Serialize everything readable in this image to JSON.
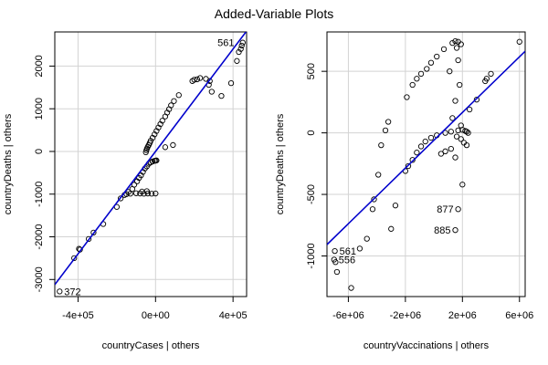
{
  "figure": {
    "title": "Added-Variable Plots"
  },
  "chart_data": [
    {
      "type": "scatter",
      "xlabel": "countryCases | others",
      "ylabel": "countryDeaths | others",
      "xlim": [
        -520000,
        470000
      ],
      "ylim": [
        -3400,
        2800
      ],
      "xticks": [
        -400000,
        0,
        400000
      ],
      "xtick_labels": [
        "-4e+05",
        "0e+00",
        "4e+05"
      ],
      "yticks": [
        -3000,
        -2000,
        -1000,
        0,
        1000,
        2000
      ],
      "ytick_labels": [
        "-3000",
        "-2000",
        "-1000",
        "0",
        "1000",
        "2000"
      ],
      "grid": true,
      "fit_line": {
        "slope": 0.006,
        "intercept": 0,
        "color": "#0000cc"
      },
      "labels": [
        {
          "text": "561",
          "x": 430000,
          "y": 2550
        },
        {
          "text": "372",
          "x": -495000,
          "y": -3280
        }
      ],
      "points": [
        [
          -495000,
          -3280
        ],
        [
          -420000,
          -2500
        ],
        [
          -395000,
          -2280
        ],
        [
          -390000,
          -2300
        ],
        [
          -345000,
          -2050
        ],
        [
          -320000,
          -1900
        ],
        [
          -270000,
          -1700
        ],
        [
          -200000,
          -1300
        ],
        [
          -180000,
          -1100
        ],
        [
          -160000,
          -1020
        ],
        [
          -140000,
          -950
        ],
        [
          -120000,
          -880
        ],
        [
          -110000,
          -780
        ],
        [
          -95000,
          -700
        ],
        [
          -85000,
          -620
        ],
        [
          -75000,
          -560
        ],
        [
          -65000,
          -480
        ],
        [
          -55000,
          -400
        ],
        [
          -45000,
          -350
        ],
        [
          -35000,
          -290
        ],
        [
          -25000,
          -255
        ],
        [
          -15000,
          -235
        ],
        [
          -5000,
          -220
        ],
        [
          0,
          -215
        ],
        [
          5000,
          -210
        ],
        [
          -150000,
          -1000
        ],
        [
          -130000,
          -990
        ],
        [
          -100000,
          -980
        ],
        [
          -80000,
          -985
        ],
        [
          -60000,
          -990
        ],
        [
          -40000,
          -985
        ],
        [
          -20000,
          -990
        ],
        [
          0,
          -985
        ],
        [
          -70000,
          -940
        ],
        [
          -45000,
          -930
        ],
        [
          -50000,
          -20
        ],
        [
          -47000,
          30
        ],
        [
          -44000,
          70
        ],
        [
          -40000,
          110
        ],
        [
          -35000,
          150
        ],
        [
          -30000,
          200
        ],
        [
          -25000,
          250
        ],
        [
          -15000,
          320
        ],
        [
          -5000,
          400
        ],
        [
          5000,
          480
        ],
        [
          15000,
          560
        ],
        [
          25000,
          640
        ],
        [
          35000,
          720
        ],
        [
          50000,
          820
        ],
        [
          60000,
          910
        ],
        [
          70000,
          990
        ],
        [
          80000,
          1080
        ],
        [
          95000,
          1180
        ],
        [
          120000,
          1320
        ],
        [
          190000,
          1650
        ],
        [
          200000,
          1680
        ],
        [
          215000,
          1690
        ],
        [
          230000,
          1720
        ],
        [
          260000,
          1700
        ],
        [
          280000,
          1650
        ],
        [
          275000,
          1560
        ],
        [
          290000,
          1400
        ],
        [
          340000,
          1300
        ],
        [
          390000,
          1600
        ],
        [
          420000,
          2120
        ],
        [
          430000,
          2330
        ],
        [
          440000,
          2400
        ],
        [
          445000,
          2480
        ],
        [
          450000,
          2550
        ],
        [
          50000,
          100
        ],
        [
          90000,
          150
        ]
      ]
    },
    {
      "type": "scatter",
      "xlabel": "countryVaccinations | others",
      "ylabel": "countryDeaths | others",
      "xlim": [
        -7500000,
        6400000
      ],
      "ylim": [
        -1330,
        820
      ],
      "xticks": [
        -6000000,
        -2000000,
        2000000,
        6000000
      ],
      "xtick_labels": [
        "-6e+06",
        "-2e+06",
        "2e+06",
        "6e+06"
      ],
      "yticks": [
        -1000,
        -500,
        0,
        500
      ],
      "ytick_labels": [
        "-1000",
        "-500",
        "0",
        "500"
      ],
      "grid": true,
      "fit_line": {
        "slope": 0.000113,
        "intercept": -60,
        "color": "#0000cc"
      },
      "labels": [
        {
          "text": "561",
          "x": -6950000,
          "y": -960
        },
        {
          "text": "556",
          "x": -7000000,
          "y": -1030
        },
        {
          "text": "877",
          "x": 1700000,
          "y": -620
        },
        {
          "text": "885",
          "x": 1500000,
          "y": -790
        }
      ],
      "points": [
        [
          -6950000,
          -960
        ],
        [
          -7000000,
          -1030
        ],
        [
          -6900000,
          -1050
        ],
        [
          -6800000,
          -1130
        ],
        [
          -5800000,
          -1260
        ],
        [
          -5200000,
          -940
        ],
        [
          -4700000,
          -860
        ],
        [
          -4300000,
          -620
        ],
        [
          -4200000,
          -540
        ],
        [
          -3700000,
          -100
        ],
        [
          -3400000,
          20
        ],
        [
          -3200000,
          90
        ],
        [
          -3000000,
          -780
        ],
        [
          -2700000,
          -590
        ],
        [
          -2000000,
          -310
        ],
        [
          -1800000,
          -270
        ],
        [
          -1500000,
          -220
        ],
        [
          -1200000,
          -160
        ],
        [
          -900000,
          -110
        ],
        [
          -600000,
          -70
        ],
        [
          -200000,
          -40
        ],
        [
          200000,
          -20
        ],
        [
          800000,
          0
        ],
        [
          1200000,
          10
        ],
        [
          1700000,
          20
        ],
        [
          2000000,
          25
        ],
        [
          2200000,
          15
        ],
        [
          2300000,
          10
        ],
        [
          2400000,
          0
        ],
        [
          1600000,
          -30
        ],
        [
          1900000,
          -50
        ],
        [
          2100000,
          -80
        ],
        [
          2300000,
          -100
        ],
        [
          1200000,
          -130
        ],
        [
          800000,
          -150
        ],
        [
          500000,
          -170
        ],
        [
          1500000,
          -200
        ],
        [
          -1900000,
          290
        ],
        [
          -1500000,
          390
        ],
        [
          -1200000,
          440
        ],
        [
          -900000,
          480
        ],
        [
          -500000,
          520
        ],
        [
          -200000,
          570
        ],
        [
          200000,
          620
        ],
        [
          700000,
          680
        ],
        [
          1300000,
          730
        ],
        [
          1500000,
          745
        ],
        [
          1700000,
          740
        ],
        [
          1900000,
          720
        ],
        [
          1600000,
          690
        ],
        [
          1700000,
          590
        ],
        [
          1100000,
          500
        ],
        [
          1800000,
          390
        ],
        [
          1500000,
          260
        ],
        [
          2500000,
          190
        ],
        [
          3000000,
          270
        ],
        [
          3600000,
          420
        ],
        [
          3700000,
          440
        ],
        [
          4000000,
          480
        ],
        [
          6000000,
          740
        ],
        [
          2000000,
          -420
        ],
        [
          1700000,
          -620
        ],
        [
          1500000,
          -790
        ],
        [
          -3900000,
          -340
        ],
        [
          1300000,
          120
        ],
        [
          1900000,
          60
        ]
      ]
    }
  ]
}
